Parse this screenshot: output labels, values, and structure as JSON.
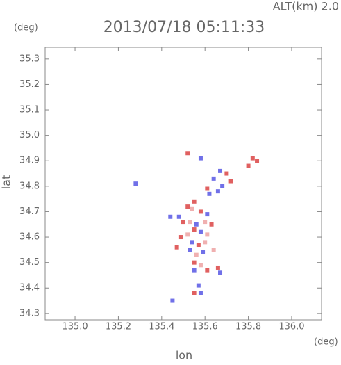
{
  "chart_data": {
    "type": "scatter",
    "top_label": "ALT(km) 2.0",
    "title": "2013/07/18 05:11:33",
    "y_unit": "(deg)",
    "x_unit": "(deg)",
    "ylabel": "lat",
    "xlabel": "lon",
    "xlim": [
      134.862,
      136.138
    ],
    "ylim": [
      34.275,
      35.346
    ],
    "xticks": [
      {
        "value": 135,
        "label": "135.0"
      },
      135.2,
      135.4,
      135.6,
      135.8,
      {
        "value": 136,
        "label": "136.0"
      }
    ],
    "yticks": [
      34.3,
      34.4,
      34.5,
      34.6,
      34.7,
      34.8,
      34.9,
      {
        "value": 35,
        "label": "35.0"
      },
      35.1,
      35.2,
      35.3
    ],
    "x": [
      135.52,
      135.58,
      135.82,
      135.84,
      135.8,
      135.67,
      135.7,
      135.64,
      135.72,
      135.68,
      135.61,
      135.66,
      135.62,
      135.55,
      135.52,
      135.54,
      135.58,
      135.61,
      135.48,
      135.5,
      135.53,
      135.56,
      135.6,
      135.63,
      135.55,
      135.58,
      135.52,
      135.61,
      135.54,
      135.57,
      135.6,
      135.49,
      135.53,
      135.56,
      135.59,
      135.55,
      135.58,
      135.55,
      135.61,
      135.66,
      135.67,
      135.57,
      135.55,
      135.58,
      135.45,
      135.28,
      135.44,
      135.47,
      135.64
    ],
    "y": [
      34.93,
      34.91,
      34.91,
      34.9,
      34.88,
      34.86,
      34.85,
      34.83,
      34.82,
      34.8,
      34.79,
      34.78,
      34.77,
      34.74,
      34.72,
      34.71,
      34.7,
      34.69,
      34.68,
      34.66,
      34.66,
      34.65,
      34.66,
      34.65,
      34.63,
      34.62,
      34.61,
      34.61,
      34.58,
      34.57,
      34.58,
      34.6,
      34.55,
      34.53,
      34.54,
      34.5,
      34.49,
      34.47,
      34.47,
      34.48,
      34.46,
      34.41,
      34.38,
      34.38,
      34.35,
      34.81,
      34.68,
      34.56,
      34.55
    ],
    "colors": [
      "#e06060",
      "#7070e8",
      "#e06060",
      "#e06060",
      "#e06060",
      "#7070e8",
      "#e06060",
      "#7070e8",
      "#e06060",
      "#7070e8",
      "#e06060",
      "#7070e8",
      "#7070e8",
      "#e06060",
      "#e06060",
      "#f0b0b0",
      "#e06060",
      "#7070e8",
      "#7070e8",
      "#e06060",
      "#f0b0b0",
      "#7070e8",
      "#f0b0b0",
      "#e06060",
      "#e06060",
      "#7070e8",
      "#f0b0b0",
      "#f0b0b0",
      "#7070e8",
      "#e06060",
      "#f0b0b0",
      "#e06060",
      "#7070e8",
      "#f0b0b0",
      "#7070e8",
      "#e06060",
      "#f0b0b0",
      "#7070e8",
      "#e06060",
      "#e06060",
      "#7070e8",
      "#7070e8",
      "#e06060",
      "#7070e8",
      "#7070e8",
      "#7070e8",
      "#7070e8",
      "#e06060",
      "#f0b0b0"
    ]
  }
}
